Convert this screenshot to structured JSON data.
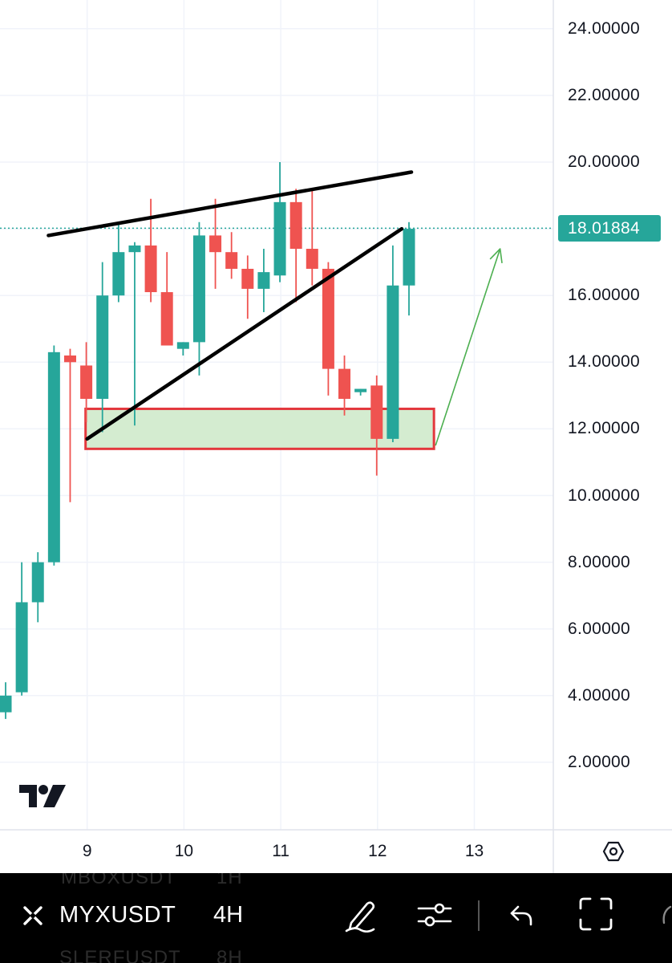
{
  "chart_data": {
    "type": "candlestick",
    "symbol": "MYXUSDT",
    "interval": "4H",
    "last_price": 18.01884,
    "price_axis_ticks": [
      "24.00000",
      "22.00000",
      "20.00000",
      "16.00000",
      "14.00000",
      "12.00000",
      "10.00000",
      "8.00000",
      "6.00000",
      "4.00000",
      "2.00000"
    ],
    "date_axis_ticks": [
      "9",
      "10",
      "11",
      "12",
      "13"
    ],
    "ylim": [
      0,
      25
    ],
    "grid": true,
    "candles": [
      {
        "o": 3.5,
        "h": 4.4,
        "l": 3.3,
        "c": 4.0
      },
      {
        "o": 4.1,
        "h": 8.0,
        "l": 4.0,
        "c": 6.8
      },
      {
        "o": 6.8,
        "h": 8.3,
        "l": 6.2,
        "c": 8.0
      },
      {
        "o": 8.0,
        "h": 14.5,
        "l": 7.9,
        "c": 14.3
      },
      {
        "o": 14.2,
        "h": 14.4,
        "l": 9.8,
        "c": 14.0
      },
      {
        "o": 13.9,
        "h": 14.6,
        "l": 12.2,
        "c": 12.9
      },
      {
        "o": 12.9,
        "h": 17.0,
        "l": 11.9,
        "c": 16.0
      },
      {
        "o": 16.0,
        "h": 18.2,
        "l": 15.8,
        "c": 17.3
      },
      {
        "o": 17.3,
        "h": 17.6,
        "l": 12.1,
        "c": 17.5
      },
      {
        "o": 17.5,
        "h": 18.9,
        "l": 15.8,
        "c": 16.1
      },
      {
        "o": 16.1,
        "h": 17.3,
        "l": 14.6,
        "c": 14.5
      },
      {
        "o": 14.4,
        "h": 14.6,
        "l": 14.2,
        "c": 14.6
      },
      {
        "o": 14.6,
        "h": 18.2,
        "l": 13.6,
        "c": 17.8
      },
      {
        "o": 17.8,
        "h": 18.9,
        "l": 16.2,
        "c": 17.3
      },
      {
        "o": 17.3,
        "h": 17.9,
        "l": 16.5,
        "c": 16.8
      },
      {
        "o": 16.8,
        "h": 17.2,
        "l": 15.3,
        "c": 16.2
      },
      {
        "o": 16.2,
        "h": 17.4,
        "l": 15.5,
        "c": 16.7
      },
      {
        "o": 16.6,
        "h": 20.0,
        "l": 16.4,
        "c": 18.8
      },
      {
        "o": 18.8,
        "h": 19.2,
        "l": 15.8,
        "c": 17.4
      },
      {
        "o": 17.4,
        "h": 19.2,
        "l": 16.3,
        "c": 16.8
      },
      {
        "o": 16.8,
        "h": 17.0,
        "l": 13.0,
        "c": 13.8
      },
      {
        "o": 13.8,
        "h": 14.2,
        "l": 12.4,
        "c": 12.9
      },
      {
        "o": 13.1,
        "h": 13.2,
        "l": 13.0,
        "c": 13.2
      },
      {
        "o": 13.3,
        "h": 13.6,
        "l": 10.6,
        "c": 11.7
      },
      {
        "o": 11.7,
        "h": 17.5,
        "l": 11.6,
        "c": 16.3
      },
      {
        "o": 16.3,
        "h": 18.2,
        "l": 15.4,
        "c": 18.0
      }
    ],
    "annotations": {
      "zone": {
        "x_start": "9",
        "x_end": "12.5",
        "y_low": 11.4,
        "y_high": 12.6
      },
      "upper_trendline": {
        "x_start": "8.6",
        "y_start": 17.8,
        "x_end": "12.35",
        "y_end": 19.7
      },
      "lower_trendline": {
        "x_start": "9",
        "y_start": 11.7,
        "x_end": "12.25",
        "y_end": 18.0
      },
      "arrow": {
        "x_start": "12.5",
        "y_start": 11.5,
        "x_end": "13.2",
        "y_end": 17.4
      }
    },
    "colors": {
      "up": "#26a69a",
      "down": "#ef5350",
      "zone_fill": "#d4ecd0",
      "zone_border": "#e3383d",
      "trendline": "#000000",
      "arrow": "#4caf50",
      "price_line": "#26a69a"
    }
  },
  "toolbar": {
    "symbol": "MYXUSDT",
    "timeframe": "4H",
    "ghost_top_symbol": "MBOXUSDT",
    "ghost_top_tf": "1H",
    "ghost_bottom_symbol": "SLERFUSDT",
    "ghost_bottom_tf": "8H",
    "icons": [
      "logo-icon",
      "pencil-icon",
      "adjust-icon",
      "undo-icon",
      "fullscreen-icon"
    ]
  }
}
